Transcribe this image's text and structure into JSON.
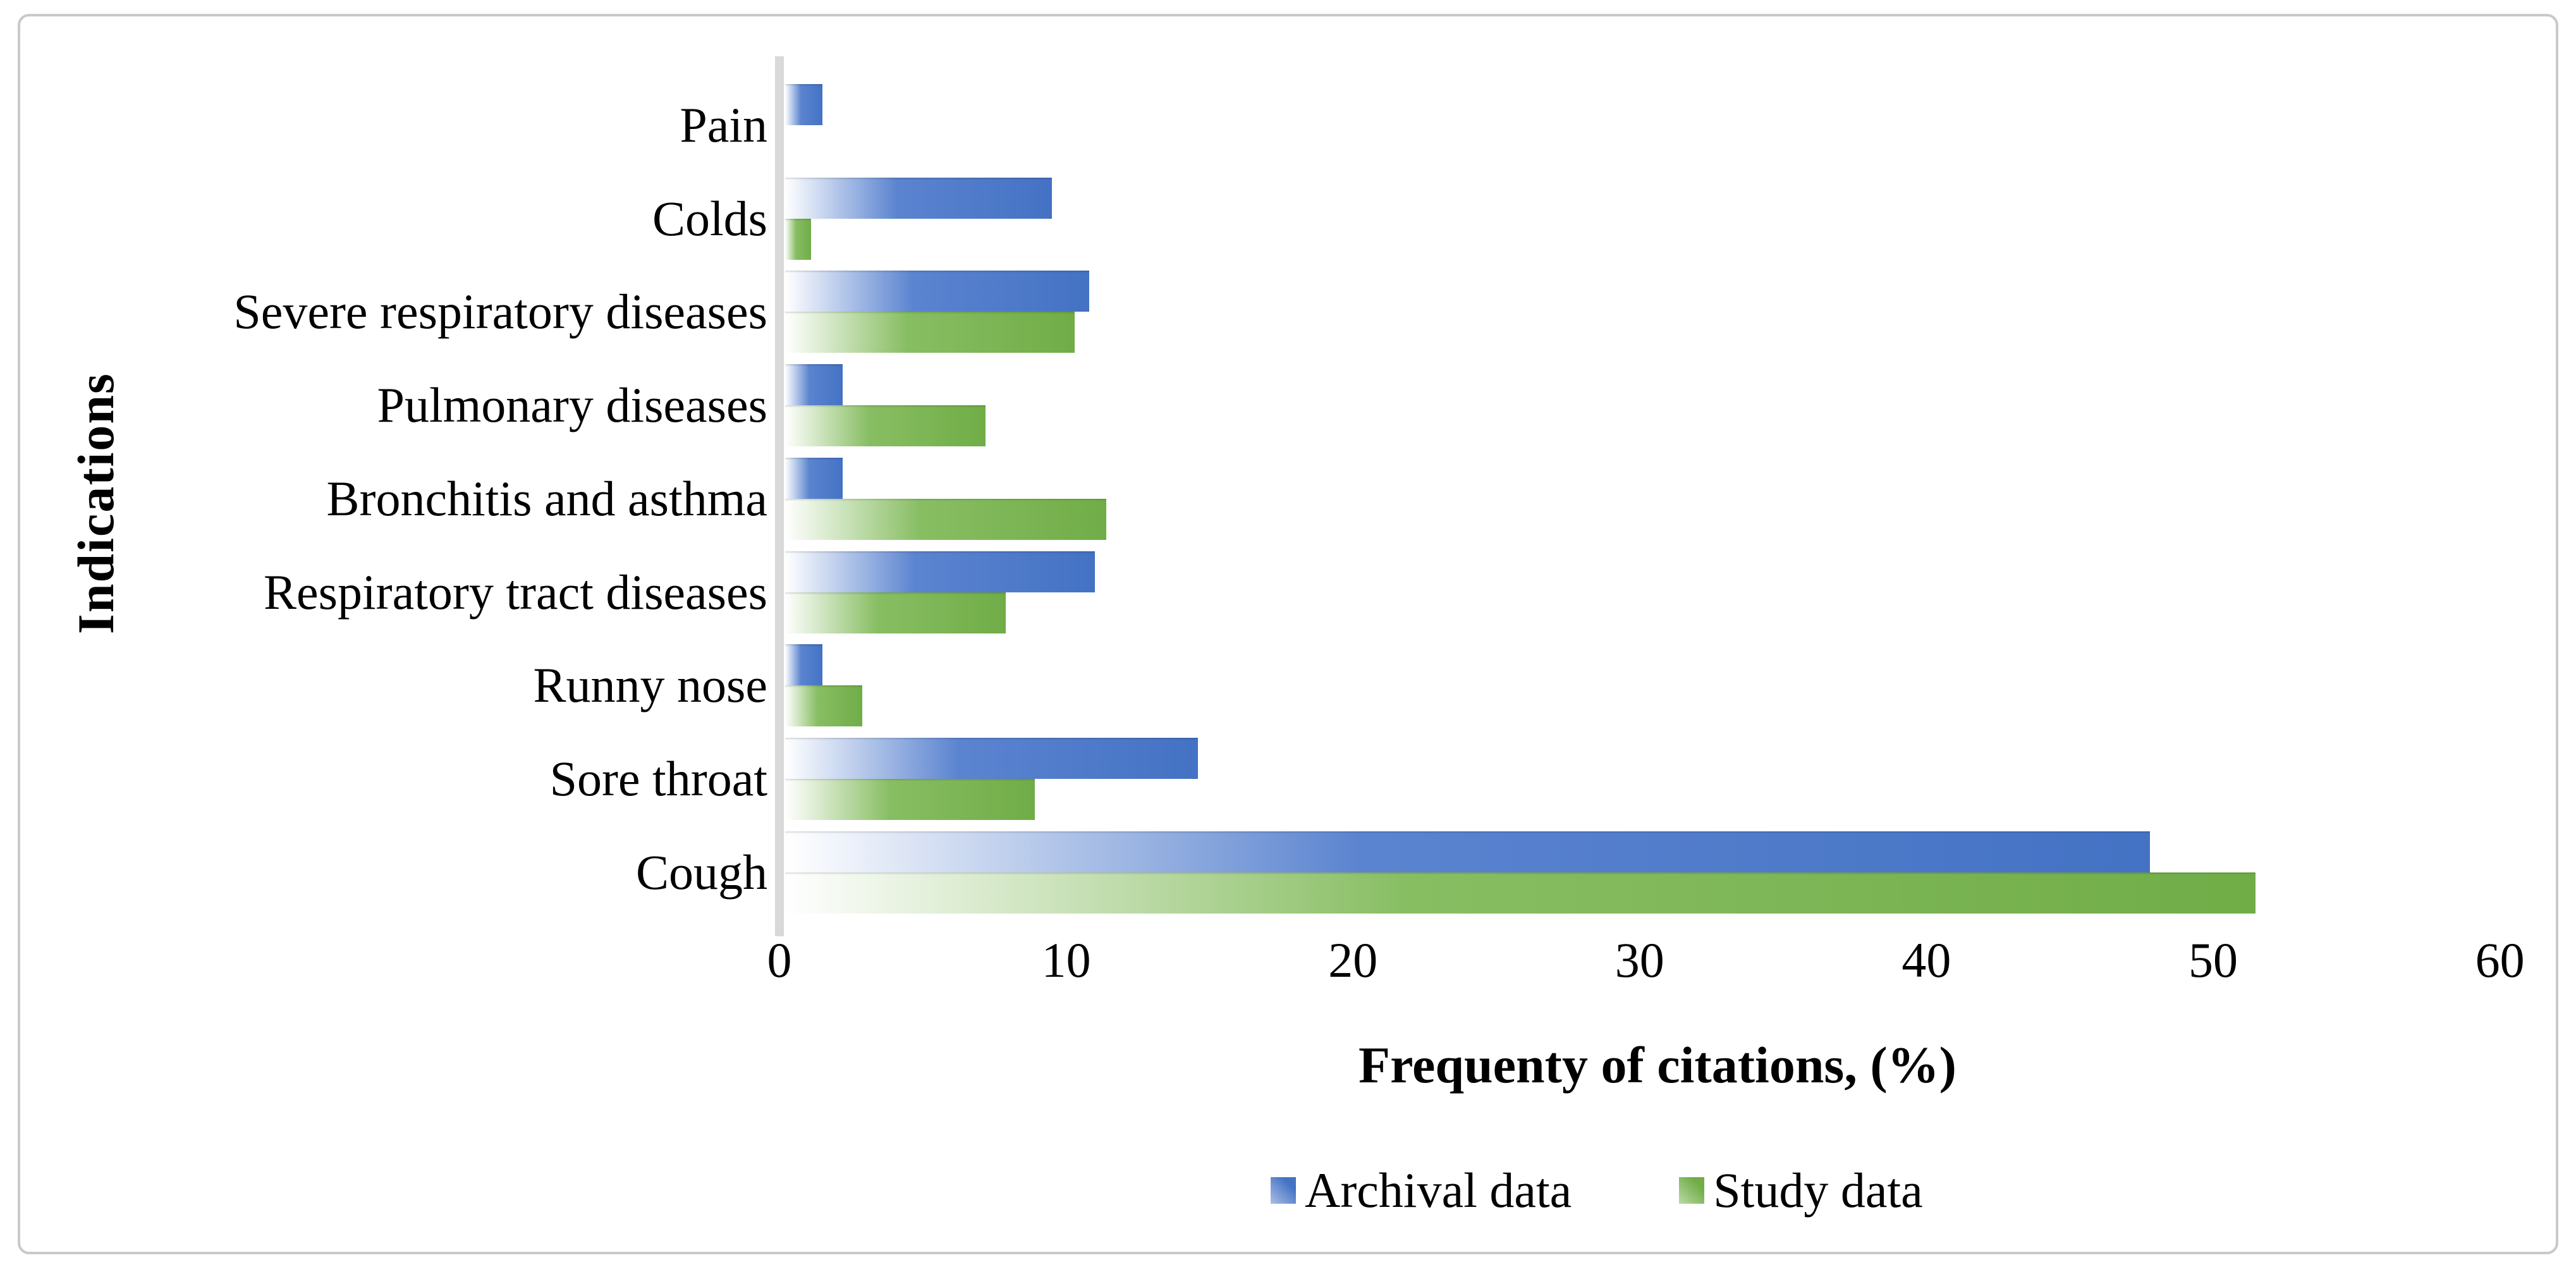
{
  "chart_data": {
    "type": "bar",
    "orientation": "horizontal",
    "title": "",
    "xlabel": "Frequenty of citations, (%)",
    "ylabel": "Indications",
    "xlim": [
      0,
      60
    ],
    "xticks": [
      0,
      10,
      20,
      30,
      40,
      50,
      60
    ],
    "grid": false,
    "legend_position": "bottom",
    "categories": [
      "Pain",
      "Colds",
      "Severe respiratory diseases",
      "Pulmonary diseases",
      "Bronchitis and asthma",
      "Respiratory tract diseases",
      "Runny nose",
      "Sore throat",
      "Cough"
    ],
    "series": [
      {
        "name": "Archival data",
        "color": "#4472c4",
        "color_mid": "#5b84d0",
        "values": [
          1.3,
          9.3,
          10.6,
          2.0,
          2.0,
          10.8,
          1.3,
          14.4,
          47.6
        ]
      },
      {
        "name": "Study data",
        "color": "#70ad47",
        "color_mid": "#88be63",
        "values": [
          0,
          0.9,
          10.1,
          7.0,
          11.2,
          7.7,
          2.7,
          8.7,
          51.3
        ]
      }
    ]
  },
  "colors": {
    "axis_line": "#d9d9d9",
    "frame_border": "#c9c9c9",
    "text": "#000000",
    "background": "#ffffff"
  }
}
